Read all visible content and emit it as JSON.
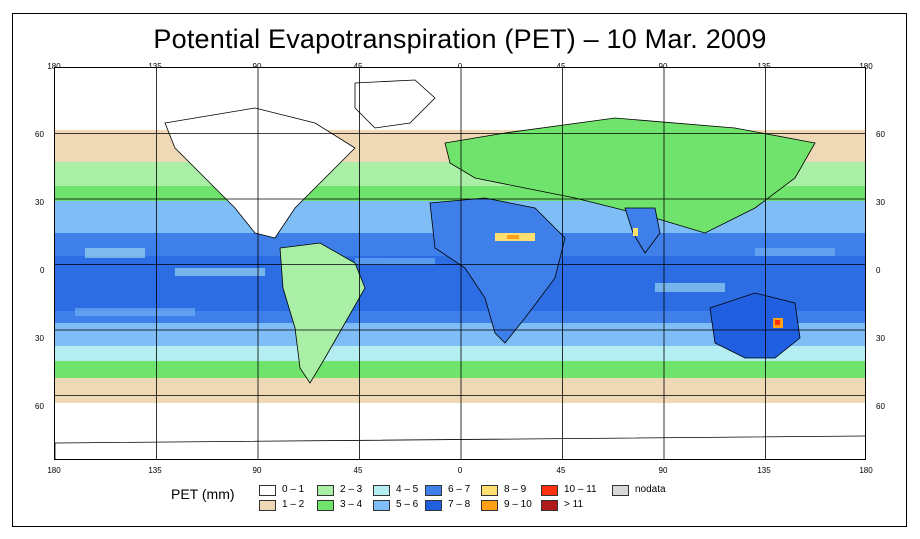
{
  "title": "Potential Evapotranspiration (PET) – 10 Mar. 2009",
  "lon_ticks": [
    "180",
    "135",
    "90",
    "45",
    "0",
    "45",
    "90",
    "135",
    "180"
  ],
  "lat_ticks": [
    "60",
    "30",
    "0",
    "30",
    "60"
  ],
  "legend": {
    "label": "PET (mm)",
    "items": [
      {
        "label": "0 – 1",
        "color": "#ffffff"
      },
      {
        "label": "1 – 2",
        "color": "#efd8b6"
      },
      {
        "label": "2 – 3",
        "color": "#a9efa6"
      },
      {
        "label": "3 – 4",
        "color": "#70e36c"
      },
      {
        "label": "4 – 5",
        "color": "#b4eef2"
      },
      {
        "label": "5 – 6",
        "color": "#7ebdf5"
      },
      {
        "label": "6 – 7",
        "color": "#3f7fe9"
      },
      {
        "label": "7 – 8",
        "color": "#1f5fe0"
      },
      {
        "label": "8 – 9",
        "color": "#ffdf70"
      },
      {
        "label": "9 – 10",
        "color": "#ffa017"
      },
      {
        "label": "10 – 11",
        "color": "#ff3010"
      },
      {
        "label": "> 11",
        "color": "#b01a1a"
      },
      {
        "label": "nodata",
        "color": "#d9d9d9"
      }
    ]
  }
}
